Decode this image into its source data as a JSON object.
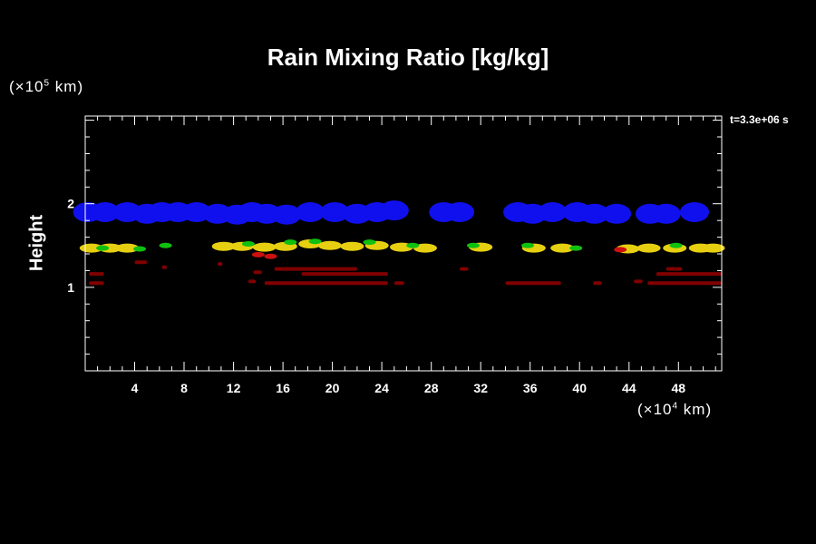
{
  "chart_data": {
    "type": "heatmap",
    "title": "Rain Mixing Ratio [kg/kg]",
    "ylabel": "Height",
    "y_unit": {
      "prefix": "(×10",
      "exp": "5",
      "suffix": " km)"
    },
    "x_unit": {
      "prefix": "(×10",
      "exp": "4",
      "suffix": " km)"
    },
    "time_label": "t=3.3e+06 s",
    "xlim": [
      0,
      51.5
    ],
    "ylim": [
      0,
      3.05
    ],
    "x_ticks": [
      4,
      8,
      12,
      16,
      20,
      24,
      28,
      32,
      36,
      40,
      44,
      48
    ],
    "y_ticks": [
      1,
      2
    ],
    "colors": {
      "high": "#1010ee",
      "yellow": "#e6cf10",
      "green": "#10c010",
      "red": "#cc1010",
      "darkred": "#800000"
    },
    "layers": [
      {
        "name": "upper band",
        "color": "high",
        "patches": [
          [
            0.2,
            1.9
          ],
          [
            1.6,
            1.9
          ],
          [
            3.4,
            1.9
          ],
          [
            5.0,
            1.88
          ],
          [
            6.2,
            1.9
          ],
          [
            7.5,
            1.9
          ],
          [
            9.0,
            1.9
          ],
          [
            10.7,
            1.88
          ],
          [
            12.3,
            1.87
          ],
          [
            13.5,
            1.9
          ],
          [
            14.7,
            1.88
          ],
          [
            16.3,
            1.87
          ],
          [
            18.2,
            1.9
          ],
          [
            20.2,
            1.9
          ],
          [
            22.0,
            1.88
          ],
          [
            23.6,
            1.9
          ],
          [
            25.0,
            1.92
          ],
          [
            29.0,
            1.9
          ],
          [
            30.3,
            1.9
          ],
          [
            35.0,
            1.9
          ],
          [
            36.2,
            1.88
          ],
          [
            37.8,
            1.9
          ],
          [
            39.8,
            1.9
          ],
          [
            41.2,
            1.88
          ],
          [
            43.0,
            1.88
          ],
          [
            45.7,
            1.88
          ],
          [
            47.0,
            1.88
          ],
          [
            49.3,
            1.9
          ]
        ]
      },
      {
        "name": "middle band yellow",
        "color": "yellow",
        "patches": [
          [
            0.5,
            1.47
          ],
          [
            2.0,
            1.47
          ],
          [
            3.4,
            1.47
          ],
          [
            11.2,
            1.49
          ],
          [
            12.7,
            1.49
          ],
          [
            14.5,
            1.48
          ],
          [
            16.2,
            1.49
          ],
          [
            18.2,
            1.52
          ],
          [
            19.8,
            1.5
          ],
          [
            21.6,
            1.49
          ],
          [
            23.6,
            1.5
          ],
          [
            25.6,
            1.48
          ],
          [
            27.5,
            1.47
          ],
          [
            32.0,
            1.48
          ],
          [
            36.3,
            1.47
          ],
          [
            38.6,
            1.47
          ],
          [
            43.9,
            1.46
          ],
          [
            45.6,
            1.47
          ],
          [
            47.7,
            1.47
          ],
          [
            49.8,
            1.47
          ],
          [
            50.8,
            1.47
          ]
        ]
      },
      {
        "name": "middle band green",
        "color": "green",
        "patches": [
          [
            1.4,
            1.47
          ],
          [
            4.4,
            1.46
          ],
          [
            6.5,
            1.5
          ],
          [
            13.2,
            1.52
          ],
          [
            16.6,
            1.54
          ],
          [
            18.6,
            1.55
          ],
          [
            23.0,
            1.54
          ],
          [
            26.5,
            1.5
          ],
          [
            31.4,
            1.5
          ],
          [
            35.8,
            1.5
          ],
          [
            39.7,
            1.47
          ],
          [
            47.8,
            1.5
          ]
        ]
      },
      {
        "name": "low red",
        "color": "red",
        "patches": [
          [
            14.0,
            1.39
          ],
          [
            43.3,
            1.45
          ],
          [
            15.0,
            1.37
          ]
        ]
      },
      {
        "name": "lower streaks",
        "color": "darkred",
        "streaks": [
          [
            0.3,
            1.5,
            1.16
          ],
          [
            0.3,
            1.5,
            1.05
          ],
          [
            4.0,
            5.0,
            1.3
          ],
          [
            6.2,
            6.6,
            1.24
          ],
          [
            10.7,
            11.1,
            1.28
          ],
          [
            13.6,
            14.3,
            1.18
          ],
          [
            13.2,
            13.8,
            1.07
          ],
          [
            15.3,
            22.0,
            1.22
          ],
          [
            17.5,
            24.5,
            1.16
          ],
          [
            14.5,
            24.5,
            1.05
          ],
          [
            25.0,
            25.8,
            1.05
          ],
          [
            30.3,
            31.0,
            1.22
          ],
          [
            34.0,
            38.5,
            1.05
          ],
          [
            41.1,
            41.8,
            1.05
          ],
          [
            44.4,
            45.1,
            1.07
          ],
          [
            46.2,
            51.5,
            1.16
          ],
          [
            47.0,
            48.3,
            1.22
          ],
          [
            45.5,
            51.5,
            1.05
          ]
        ]
      }
    ]
  }
}
